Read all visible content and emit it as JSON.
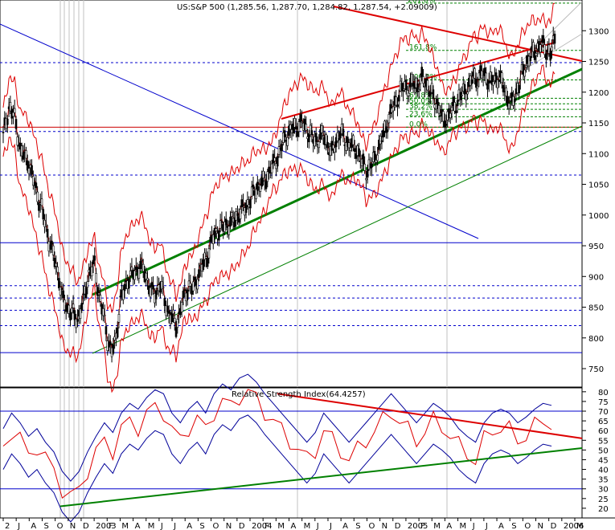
{
  "chart_data": [
    {
      "type": "candlestick",
      "title": "US:S&P 500 (1,285.56, 1,287.70, 1,284.82, 1,287.54, +2.09009)",
      "ylim": [
        720,
        1350
      ],
      "y_ticks": [
        750,
        800,
        850,
        900,
        950,
        1000,
        1050,
        1100,
        1150,
        1200,
        1250,
        1300
      ],
      "x_ticks": [
        "2",
        "J",
        "A",
        "S",
        "O",
        "N",
        "D",
        "2003",
        "F",
        "M",
        "A",
        "M",
        "J",
        "J",
        "A",
        "S",
        "O",
        "N",
        "D",
        "2004",
        "F",
        "M",
        "A",
        "M",
        "J",
        "J",
        "A",
        "S",
        "O",
        "N",
        "D",
        "2005",
        "F",
        "M",
        "A",
        "M",
        "J",
        "J",
        "A",
        "S",
        "O",
        "N",
        "D",
        "2006",
        "M"
      ],
      "fib_labels": [
        "261.8%",
        "161.8%",
        "100.0%",
        "61.8%",
        "50.0%",
        "38.2%",
        "23.6%",
        "0.0%"
      ],
      "fib_levels": [
        1345,
        1268,
        1220,
        1190,
        1181,
        1172,
        1160,
        1143
      ],
      "horizontal_levels": [
        1248,
        1136,
        1065,
        955,
        885,
        865,
        845,
        820,
        776
      ],
      "price_path": [
        [
          0,
          1130
        ],
        [
          4,
          1175
        ],
        [
          8,
          1160
        ],
        [
          12,
          1105
        ],
        [
          17,
          1090
        ],
        [
          22,
          1050
        ],
        [
          27,
          1010
        ],
        [
          32,
          960
        ],
        [
          37,
          920
        ],
        [
          42,
          860
        ],
        [
          47,
          845
        ],
        [
          52,
          830
        ],
        [
          56,
          860
        ],
        [
          60,
          905
        ],
        [
          64,
          920
        ],
        [
          67,
          870
        ],
        [
          70,
          840
        ],
        [
          73,
          800
        ],
        [
          76,
          776
        ],
        [
          79,
          800
        ],
        [
          82,
          860
        ],
        [
          85,
          880
        ],
        [
          88,
          900
        ],
        [
          92,
          905
        ],
        [
          96,
          920
        ],
        [
          100,
          900
        ],
        [
          103,
          880
        ],
        [
          106,
          870
        ],
        [
          110,
          890
        ],
        [
          113,
          860
        ],
        [
          116,
          840
        ],
        [
          119,
          830
        ],
        [
          121,
          820
        ],
        [
          124,
          845
        ],
        [
          127,
          870
        ],
        [
          130,
          885
        ],
        [
          133,
          880
        ],
        [
          136,
          900
        ],
        [
          140,
          920
        ],
        [
          143,
          935
        ],
        [
          146,
          960
        ],
        [
          150,
          975
        ],
        [
          153,
          980
        ],
        [
          157,
          985
        ],
        [
          161,
          990
        ],
        [
          164,
          1000
        ],
        [
          168,
          1010
        ],
        [
          172,
          1020
        ],
        [
          176,
          1040
        ],
        [
          180,
          1050
        ],
        [
          183,
          1055
        ],
        [
          186,
          1070
        ],
        [
          190,
          1085
        ],
        [
          193,
          1100
        ],
        [
          196,
          1120
        ],
        [
          200,
          1135
        ],
        [
          203,
          1140
        ],
        [
          206,
          1145
        ],
        [
          209,
          1150
        ],
        [
          212,
          1140
        ],
        [
          215,
          1130
        ],
        [
          218,
          1120
        ],
        [
          221,
          1125
        ],
        [
          224,
          1130
        ],
        [
          227,
          1115
        ],
        [
          230,
          1100
        ],
        [
          233,
          1120
        ],
        [
          236,
          1135
        ],
        [
          239,
          1120
        ],
        [
          242,
          1115
        ],
        [
          245,
          1110
        ],
        [
          248,
          1105
        ],
        [
          251,
          1085
        ],
        [
          254,
          1070
        ],
        [
          257,
          1080
        ],
        [
          260,
          1090
        ],
        [
          263,
          1110
        ],
        [
          266,
          1130
        ],
        [
          269,
          1150
        ],
        [
          272,
          1170
        ],
        [
          275,
          1185
        ],
        [
          278,
          1200
        ],
        [
          281,
          1210
        ],
        [
          284,
          1205
        ],
        [
          287,
          1215
        ],
        [
          290,
          1210
        ],
        [
          293,
          1220
        ],
        [
          296,
          1215
        ],
        [
          299,
          1200
        ],
        [
          302,
          1185
        ],
        [
          305,
          1175
        ],
        [
          308,
          1150
        ],
        [
          311,
          1160
        ],
        [
          314,
          1170
        ],
        [
          317,
          1180
        ],
        [
          320,
          1195
        ],
        [
          323,
          1200
        ],
        [
          326,
          1210
        ],
        [
          329,
          1225
        ],
        [
          332,
          1220
        ],
        [
          335,
          1230
        ],
        [
          338,
          1225
        ],
        [
          341,
          1215
        ],
        [
          344,
          1220
        ],
        [
          347,
          1225
        ],
        [
          350,
          1210
        ],
        [
          353,
          1190
        ],
        [
          356,
          1180
        ],
        [
          359,
          1200
        ],
        [
          362,
          1220
        ],
        [
          365,
          1240
        ],
        [
          368,
          1255
        ],
        [
          371,
          1265
        ],
        [
          374,
          1272
        ],
        [
          377,
          1278
        ],
        [
          380,
          1270
        ],
        [
          383,
          1262
        ],
        [
          386,
          1287
        ]
      ]
    },
    {
      "type": "line",
      "title": "Relative Strength Index(64.4257)",
      "ylim": [
        15,
        82
      ],
      "y_ticks": [
        20,
        25,
        30,
        35,
        40,
        45,
        50,
        55,
        60,
        65,
        70,
        75,
        80
      ],
      "horizontal_levels": [
        70,
        30
      ],
      "series": [
        {
          "values": [
            [
              0,
              52
            ],
            [
              5,
              60
            ],
            [
              10,
              55
            ],
            [
              15,
              48
            ],
            [
              20,
              52
            ],
            [
              25,
              45
            ],
            [
              30,
              40
            ],
            [
              35,
              30
            ],
            [
              40,
              25
            ],
            [
              45,
              30
            ],
            [
              50,
              40
            ],
            [
              55,
              48
            ],
            [
              60,
              55
            ],
            [
              65,
              50
            ],
            [
              70,
              60
            ],
            [
              75,
              65
            ],
            [
              80,
              62
            ],
            [
              85,
              68
            ],
            [
              90,
              72
            ],
            [
              95,
              70
            ],
            [
              100,
              60
            ],
            [
              105,
              55
            ],
            [
              110,
              62
            ],
            [
              115,
              66
            ],
            [
              120,
              60
            ],
            [
              125,
              70
            ],
            [
              130,
              75
            ],
            [
              135,
              72
            ],
            [
              140,
              78
            ],
            [
              145,
              80
            ],
            [
              150,
              76
            ],
            [
              155,
              70
            ],
            [
              160,
              65
            ],
            [
              165,
              60
            ],
            [
              170,
              55
            ],
            [
              175,
              50
            ],
            [
              180,
              45
            ],
            [
              185,
              50
            ],
            [
              190,
              60
            ],
            [
              195,
              55
            ],
            [
              200,
              50
            ],
            [
              205,
              45
            ],
            [
              210,
              50
            ],
            [
              215,
              55
            ],
            [
              220,
              60
            ],
            [
              225,
              65
            ],
            [
              230,
              70
            ],
            [
              235,
              65
            ],
            [
              240,
              60
            ],
            [
              245,
              55
            ],
            [
              250,
              60
            ],
            [
              255,
              65
            ],
            [
              260,
              62
            ],
            [
              265,
              58
            ],
            [
              270,
              52
            ],
            [
              275,
              48
            ],
            [
              280,
              45
            ],
            [
              285,
              55
            ],
            [
              290,
              60
            ],
            [
              295,
              62
            ],
            [
              300,
              60
            ],
            [
              305,
              55
            ],
            [
              310,
              58
            ],
            [
              315,
              62
            ],
            [
              320,
              65
            ],
            [
              325,
              64
            ]
          ]
        }
      ]
    }
  ]
}
